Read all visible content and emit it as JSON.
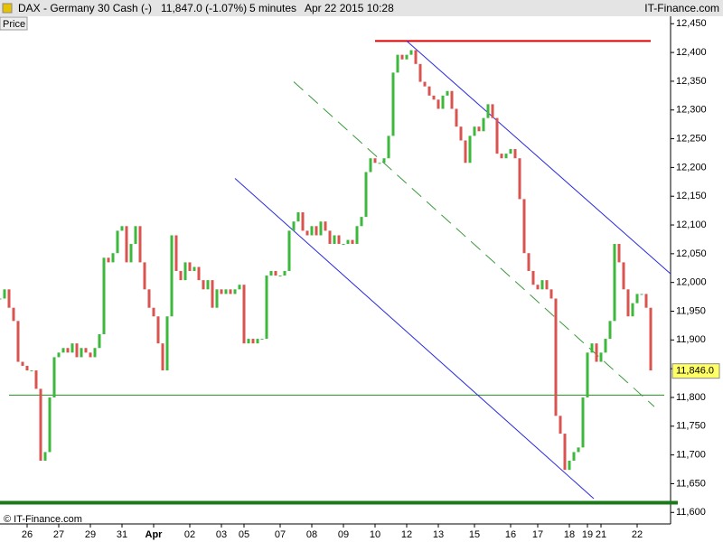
{
  "chart_data": {
    "type": "candle",
    "instrument": "DAX - Germany 30 Cash (-)",
    "quote": "11,847.0 (-1.07%)",
    "interval": "5 minutes",
    "timestamp": "Apr 22 2015 10:28",
    "brand": "IT-Finance.com",
    "price_label": "Price",
    "copyright": "© IT-Finance.com",
    "up_color": "#3cb83c",
    "down_color": "#d9534f",
    "x": [
      0,
      1,
      2,
      3,
      4,
      5,
      6,
      7,
      8,
      9,
      10,
      11,
      12,
      13,
      14,
      15,
      16,
      17,
      18,
      19,
      20,
      21,
      22,
      23,
      24,
      25,
      26,
      27,
      28,
      29,
      30,
      31,
      32,
      33,
      34,
      35,
      36,
      37,
      38,
      39,
      40,
      41,
      42,
      43,
      44,
      45,
      46,
      47,
      48,
      49,
      50,
      51,
      52,
      53,
      54,
      55,
      56,
      57,
      58,
      59,
      60,
      61,
      62,
      63,
      64,
      65,
      66,
      67,
      68,
      69,
      70,
      71,
      72,
      73,
      74,
      75,
      76,
      77,
      78,
      79,
      80,
      81,
      82,
      83,
      84,
      85,
      86,
      87,
      88,
      89,
      90,
      91,
      92,
      93,
      94,
      95,
      96,
      97,
      98,
      99,
      100,
      101,
      102,
      103,
      104,
      105,
      106,
      107,
      108,
      109,
      110,
      111,
      112,
      113,
      114,
      115,
      116,
      117,
      118,
      119,
      120,
      121,
      122,
      123,
      124,
      125,
      126,
      127,
      128,
      129,
      130,
      131,
      132,
      133,
      134,
      135,
      136,
      137,
      138,
      139,
      140,
      141,
      142,
      143,
      144
    ],
    "values": [
      11972,
      11988,
      11956,
      11933,
      11862,
      11855,
      11847,
      11847,
      11815,
      11690,
      11705,
      11800,
      11870,
      11878,
      11886,
      11878,
      11894,
      11870,
      11886,
      11878,
      11870,
      11886,
      11910,
      12043,
      12035,
      12051,
      12090,
      12098,
      12035,
      12067,
      12098,
      12035,
      11988,
      11956,
      11941,
      11894,
      11847,
      11941,
      12082,
      12020,
      12004,
      12035,
      12020,
      12027,
      12004,
      11988,
      12004,
      11956,
      11988,
      11980,
      11988,
      11980,
      11988,
      11996,
      11894,
      11902,
      11894,
      11902,
      11902,
      12012,
      12020,
      12012,
      12012,
      12020,
      12090,
      12106,
      12122,
      12090,
      12082,
      12098,
      12082,
      12106,
      12090,
      12067,
      12082,
      12067,
      12067,
      12074,
      12067,
      12098,
      12114,
      12192,
      12216,
      12208,
      12208,
      12216,
      12255,
      12365,
      12396,
      12388,
      12396,
      12404,
      12380,
      12349,
      12341,
      12325,
      12318,
      12302,
      12325,
      12333,
      12302,
      12271,
      12247,
      12208,
      12255,
      12271,
      12263,
      12286,
      12310,
      12286,
      12224,
      12216,
      12224,
      12232,
      12216,
      12145,
      12051,
      12020,
      11996,
      11988,
      12004,
      11988,
      11972,
      11768,
      11737,
      11674,
      11690,
      11705,
      11713,
      11800,
      11878,
      11894,
      11862,
      11878,
      11902,
      11933,
      12067,
      12035,
      11988,
      11941,
      11964,
      11980,
      11980,
      11956,
      11847
    ],
    "last_price": {
      "value": 11846,
      "label": "11,846.0"
    },
    "lines": [
      {
        "x": [
          83,
          144
        ],
        "y": [
          12420,
          12420
        ],
        "color": "#e00000",
        "width": 2
      },
      {
        "x": [
          2,
          147
        ],
        "y": [
          11804,
          11804
        ],
        "color": "#2a8a2a",
        "width": 1
      },
      {
        "x": [
          0,
          150
        ],
        "y": [
          11617,
          11617
        ],
        "color": "#1a7a1a",
        "width": 4
      },
      {
        "x": [
          90,
          148.4
        ],
        "y": [
          12420,
          12015
        ],
        "color": "#2b2be0",
        "width": 1
      },
      {
        "x": [
          52,
          131.4
        ],
        "y": [
          12181,
          11624
        ],
        "color": "#2b2be0",
        "width": 1
      },
      {
        "x": [
          65,
          144.8
        ],
        "y": [
          12349,
          11784
        ],
        "color": "#3a9a3a",
        "width": 1,
        "dash": "14 8"
      }
    ],
    "xlim": [
      0,
      148.4
    ],
    "xticks": [
      {
        "value": 6,
        "label": "26"
      },
      {
        "value": 13,
        "label": "27"
      },
      {
        "value": 20,
        "label": "29"
      },
      {
        "value": 27,
        "label": "31"
      },
      {
        "value": 34,
        "label": "Apr"
      },
      {
        "value": 42,
        "label": "02"
      },
      {
        "value": 49,
        "label": "03"
      },
      {
        "value": 54,
        "label": "05"
      },
      {
        "value": 62,
        "label": "07"
      },
      {
        "value": 69,
        "label": "08"
      },
      {
        "value": 76,
        "label": "09"
      },
      {
        "value": 83,
        "label": "10"
      },
      {
        "value": 90,
        "label": "12"
      },
      {
        "value": 97,
        "label": "13"
      },
      {
        "value": 105,
        "label": "15"
      },
      {
        "value": 113,
        "label": "16"
      },
      {
        "value": 119,
        "label": "17"
      },
      {
        "value": 126,
        "label": "18"
      },
      {
        "value": 130,
        "label": "19"
      },
      {
        "value": 133,
        "label": "21"
      },
      {
        "value": 141,
        "label": "22"
      }
    ],
    "ylim": [
      11580,
      12463
    ],
    "yticks": [
      {
        "value": 11600,
        "label": "11,600"
      },
      {
        "value": 11650,
        "label": "11,650"
      },
      {
        "value": 11700,
        "label": "11,700"
      },
      {
        "value": 11750,
        "label": "11,750"
      },
      {
        "value": 11800,
        "label": "11,800"
      },
      {
        "value": 11850,
        "label": "11,850"
      },
      {
        "value": 11900,
        "label": "11,900"
      },
      {
        "value": 11950,
        "label": "11,950"
      },
      {
        "value": 12000,
        "label": "12,000"
      },
      {
        "value": 12050,
        "label": "12,050"
      },
      {
        "value": 12100,
        "label": "12,100"
      },
      {
        "value": 12150,
        "label": "12,150"
      },
      {
        "value": 12200,
        "label": "12,200"
      },
      {
        "value": 12250,
        "label": "12,250"
      },
      {
        "value": 12300,
        "label": "12,300"
      },
      {
        "value": 12350,
        "label": "12,350"
      },
      {
        "value": 12400,
        "label": "12,400"
      },
      {
        "value": 12450,
        "label": "12,450"
      }
    ]
  }
}
